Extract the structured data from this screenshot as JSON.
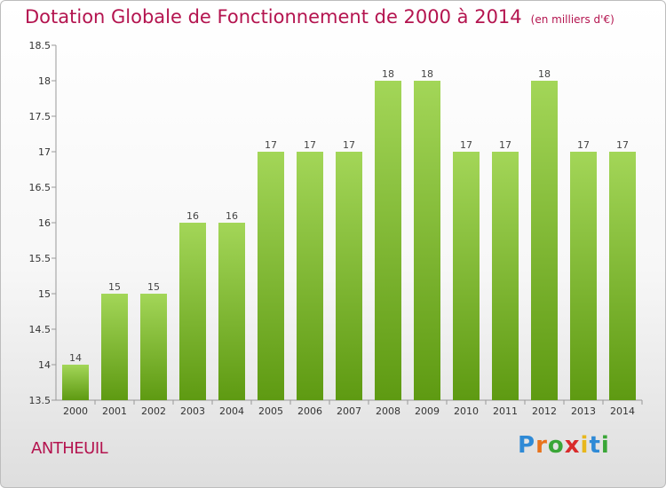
{
  "header": {
    "title": "Dotation Globale de Fonctionnement de 2000 à 2014",
    "subtitle": "(en milliers d'€)"
  },
  "commune": "ANTHEUIL",
  "logo": {
    "text": "Proxiti",
    "letters": [
      "P",
      "r",
      "o",
      "x",
      "i",
      "t",
      "i"
    ],
    "colors": [
      "#2f8ad6",
      "#e8731c",
      "#3aa637",
      "#d92b2b",
      "#e8b71c",
      "#2f8ad6",
      "#3aa637"
    ]
  },
  "colors": {
    "accent": "#b4144f",
    "bar_top": "#a3d658",
    "bar_bottom": "#5e9a12"
  },
  "chart_data": {
    "type": "bar",
    "categories": [
      "2000",
      "2001",
      "2002",
      "2003",
      "2004",
      "2005",
      "2006",
      "2007",
      "2008",
      "2009",
      "2010",
      "2011",
      "2012",
      "2013",
      "2014"
    ],
    "values": [
      14,
      15,
      15,
      16,
      16,
      17,
      17,
      17,
      18,
      18,
      17,
      17,
      18,
      17,
      17
    ],
    "value_labels": [
      "14",
      "15",
      "15",
      "16",
      "16",
      "17",
      "17",
      "17",
      "18",
      "18",
      "17",
      "17",
      "18",
      "17",
      "17"
    ],
    "title": "Dotation Globale de Fonctionnement de 2000 à 2014",
    "subtitle": "(en milliers d'€)",
    "xlabel": "",
    "ylabel": "",
    "ylim": [
      13.5,
      18.5
    ],
    "yticks": [
      13.5,
      14,
      14.5,
      15,
      15.5,
      16,
      16.5,
      17,
      17.5,
      18,
      18.5
    ],
    "ytick_labels": [
      "13.5",
      "14",
      "14.5",
      "15",
      "15.5",
      "16",
      "16.5",
      "17",
      "17.5",
      "18",
      "18.5"
    ],
    "grid": false,
    "legend": "none"
  }
}
